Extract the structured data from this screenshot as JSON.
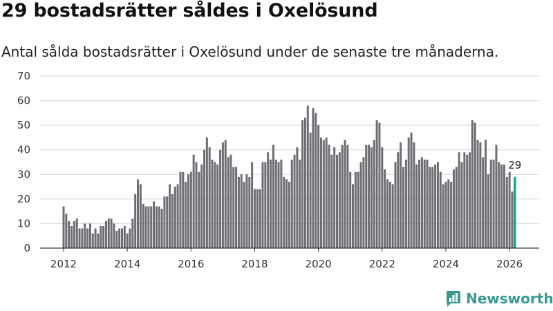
{
  "header": {
    "title": "29 bostadsrätter såldes i Oxelösund",
    "subtitle": "Antal sålda bostadsrätter i Oxelösund under de senaste tre månaderna."
  },
  "brand": {
    "name": "Newsworthy"
  },
  "colors": {
    "bar": "#6e6d73",
    "highlight": "#1f9e93",
    "grid": "#d9d9d9",
    "axis": "#333333",
    "brand": "#3a9a92"
  },
  "chart_data": {
    "type": "bar",
    "title": "29 bostadsrätter såldes i Oxelösund",
    "ylim": [
      0,
      70
    ],
    "yticks": [
      0,
      10,
      20,
      30,
      40,
      50,
      60,
      70
    ],
    "xticks": [
      "2012",
      "2014",
      "2016",
      "2018",
      "2020",
      "2022",
      "2024",
      "2026"
    ],
    "start_year": 2012,
    "start_month": 1,
    "values": [
      17,
      14,
      11,
      9,
      11,
      12,
      8,
      8,
      10,
      8,
      10,
      6,
      8,
      6,
      9,
      9,
      11,
      12,
      12,
      10,
      7,
      8,
      8,
      9,
      6,
      8,
      12,
      22,
      28,
      26,
      18,
      17,
      17,
      17,
      19,
      17,
      17,
      16,
      21,
      21,
      26,
      22,
      25,
      26,
      31,
      31,
      27,
      30,
      31,
      38,
      35,
      31,
      34,
      40,
      45,
      41,
      36,
      35,
      34,
      40,
      43,
      44,
      37,
      38,
      33,
      33,
      29,
      30,
      27,
      30,
      29,
      35,
      24,
      24,
      24,
      35,
      35,
      39,
      36,
      42,
      36,
      35,
      36,
      29,
      28,
      27,
      36,
      38,
      41,
      36,
      52,
      53,
      58,
      47,
      57,
      55,
      50,
      45,
      44,
      45,
      42,
      38,
      41,
      38,
      39,
      42,
      44,
      42,
      31,
      26,
      31,
      31,
      35,
      37,
      42,
      42,
      41,
      44,
      52,
      51,
      41,
      32,
      28,
      27,
      26,
      35,
      39,
      43,
      33,
      36,
      45,
      47,
      43,
      34,
      36,
      37,
      36,
      36,
      33,
      33,
      34,
      35,
      31,
      26,
      27,
      28,
      27,
      32,
      33,
      39,
      35,
      39,
      38,
      39,
      52,
      51,
      44,
      43,
      37,
      44,
      30,
      36,
      36,
      42,
      35,
      34,
      34,
      29,
      31,
      23,
      29
    ],
    "annotations": [
      {
        "label": "29",
        "index": 170
      }
    ]
  }
}
